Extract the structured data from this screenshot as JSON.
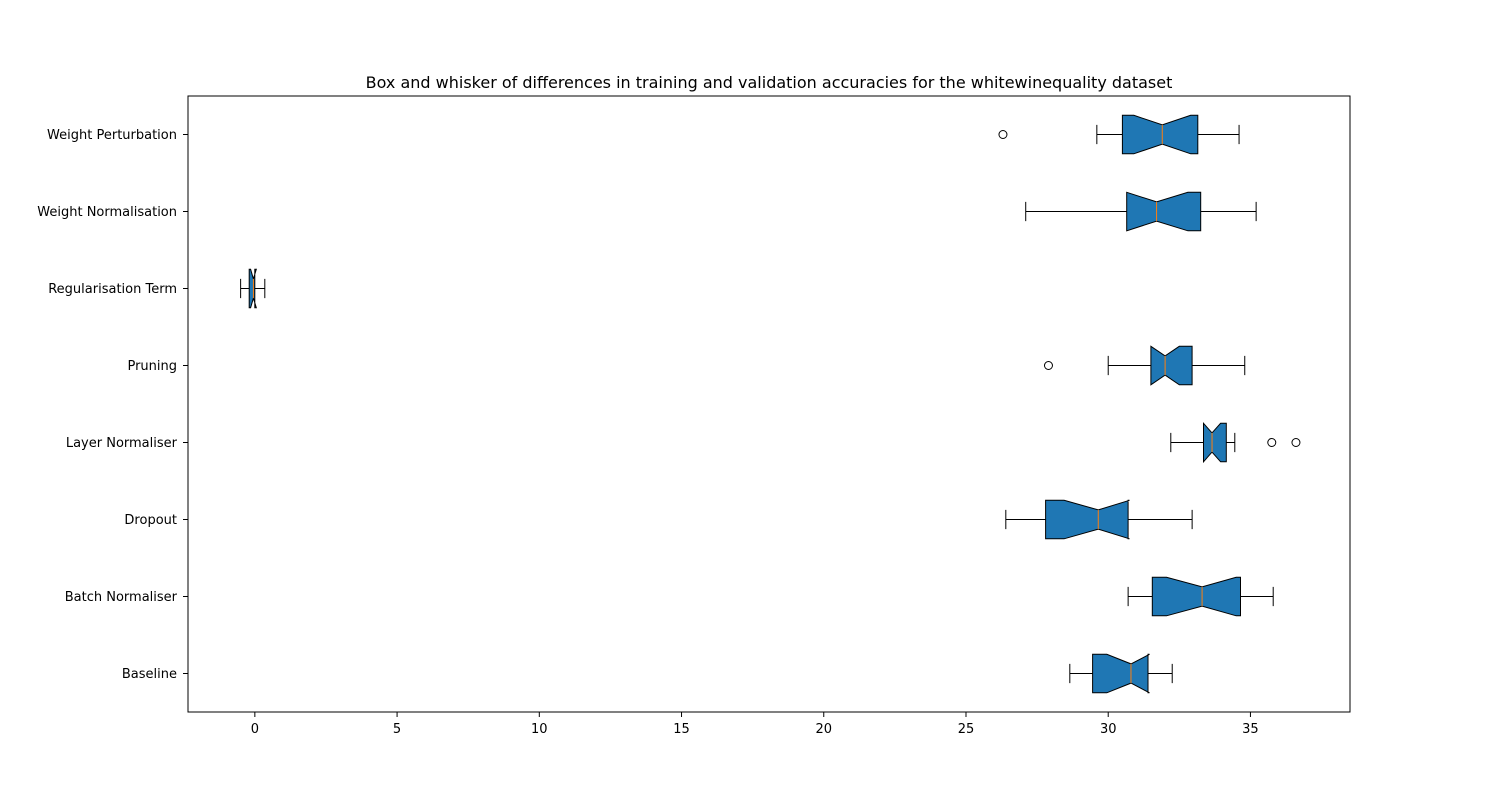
{
  "chart_data": {
    "type": "boxplot",
    "orientation": "horizontal",
    "notched": true,
    "title": "Box and whisker of differences in training and validation accuracies for the whitewinequality dataset",
    "xlabel": "",
    "ylabel": "",
    "xlim": [
      -2.35,
      38.5
    ],
    "xticks": [
      0,
      5,
      10,
      15,
      20,
      25,
      30,
      35
    ],
    "grid": false,
    "colors": {
      "box_fill": "#1f77b4",
      "median": "#ff7f0e",
      "edge": "#000000"
    },
    "series": [
      {
        "label": "Baseline",
        "whislo": 28.65,
        "q1": 29.45,
        "notch_lo": 29.95,
        "med": 30.8,
        "notch_hi": 31.45,
        "q3": 31.4,
        "whishi": 32.25,
        "fliers": []
      },
      {
        "label": "Batch Normaliser",
        "whislo": 30.7,
        "q1": 31.55,
        "notch_lo": 32.05,
        "med": 33.3,
        "notch_hi": 34.5,
        "q3": 34.65,
        "whishi": 35.8,
        "fliers": []
      },
      {
        "label": "Dropout",
        "whislo": 26.4,
        "q1": 27.8,
        "notch_lo": 28.45,
        "med": 29.65,
        "notch_hi": 30.75,
        "q3": 30.7,
        "whishi": 32.95,
        "fliers": []
      },
      {
        "label": "Layer Normaliser",
        "whislo": 32.2,
        "q1": 33.35,
        "notch_lo": 33.35,
        "med": 33.65,
        "notch_hi": 33.95,
        "q3": 34.15,
        "whishi": 34.45,
        "fliers": [
          35.75,
          36.6
        ]
      },
      {
        "label": "Pruning",
        "whislo": 30.0,
        "q1": 31.5,
        "notch_lo": 31.5,
        "med": 32.0,
        "notch_hi": 32.5,
        "q3": 32.95,
        "whishi": 34.8,
        "fliers": [
          27.9
        ]
      },
      {
        "label": "Regularisation Term",
        "whislo": -0.5,
        "q1": -0.2,
        "notch_lo": -0.15,
        "med": -0.05,
        "notch_hi": 0.05,
        "q3": 0.0,
        "whishi": 0.35,
        "fliers": []
      },
      {
        "label": "Weight Normalisation",
        "whislo": 27.1,
        "q1": 30.65,
        "notch_lo": 30.65,
        "med": 31.7,
        "notch_hi": 32.8,
        "q3": 33.25,
        "whishi": 35.2,
        "fliers": []
      },
      {
        "label": "Weight Perturbation",
        "whislo": 29.6,
        "q1": 30.5,
        "notch_lo": 30.9,
        "med": 31.9,
        "notch_hi": 32.9,
        "q3": 33.15,
        "whishi": 34.6,
        "fliers": [
          26.3
        ]
      }
    ]
  }
}
